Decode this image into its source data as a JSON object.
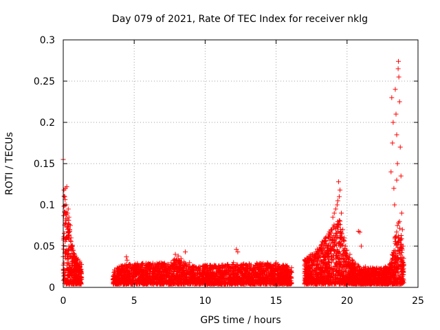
{
  "chart_data": {
    "type": "scatter",
    "title": "Day 079 of 2021, Rate Of TEC Index for receiver nklg",
    "xlabel": "GPS time / hours",
    "ylabel": "ROTI / TECUs",
    "xlim": [
      0,
      25
    ],
    "ylim": [
      0,
      0.3
    ],
    "x_ticks": [
      0,
      5,
      10,
      15,
      20,
      25
    ],
    "x_tick_labels": [
      "0",
      "5",
      "10",
      "15",
      "20",
      "25"
    ],
    "y_ticks": [
      0,
      0.05,
      0.1,
      0.15,
      0.2,
      0.25,
      0.3
    ],
    "y_tick_labels": [
      "0",
      "0.05",
      "0.1",
      "0.15",
      "0.2",
      "0.25",
      "0.3"
    ],
    "grid": true,
    "marker": "+",
    "marker_color": "#ff0000",
    "series": [
      {
        "name": "ROTI",
        "points": [
          [
            0.0,
            0.155
          ],
          [
            0.05,
            0.118
          ],
          [
            0.1,
            0.11
          ],
          [
            0.15,
            0.12
          ],
          [
            0.2,
            0.1
          ],
          [
            0.25,
            0.122
          ],
          [
            0.3,
            0.09
          ],
          [
            0.35,
            0.095
          ],
          [
            0.4,
            0.085
          ],
          [
            0.45,
            0.07
          ],
          [
            0.5,
            0.075
          ],
          [
            0.55,
            0.06
          ],
          [
            0.6,
            0.05
          ],
          [
            0.7,
            0.045
          ],
          [
            0.8,
            0.04
          ],
          [
            0.9,
            0.035
          ],
          [
            1.0,
            0.03
          ],
          [
            1.1,
            0.025
          ],
          [
            1.2,
            0.02
          ],
          [
            0.2,
            0.06
          ],
          [
            0.4,
            0.05
          ],
          [
            0.6,
            0.035
          ],
          [
            3.9,
            0.02
          ],
          [
            4.1,
            0.025
          ],
          [
            4.3,
            0.02
          ],
          [
            4.45,
            0.037
          ],
          [
            4.5,
            0.033
          ],
          [
            4.8,
            0.022
          ],
          [
            5.2,
            0.018
          ],
          [
            5.6,
            0.02
          ],
          [
            6.0,
            0.028
          ],
          [
            6.4,
            0.02
          ],
          [
            6.8,
            0.018
          ],
          [
            7.2,
            0.022
          ],
          [
            7.6,
            0.03
          ],
          [
            7.9,
            0.04
          ],
          [
            8.1,
            0.038
          ],
          [
            8.3,
            0.035
          ],
          [
            8.6,
            0.043
          ],
          [
            8.9,
            0.03
          ],
          [
            9.2,
            0.025
          ],
          [
            9.6,
            0.02
          ],
          [
            10.0,
            0.02
          ],
          [
            10.4,
            0.018
          ],
          [
            10.8,
            0.022
          ],
          [
            11.2,
            0.02
          ],
          [
            11.6,
            0.028
          ],
          [
            12.0,
            0.03
          ],
          [
            12.2,
            0.046
          ],
          [
            12.3,
            0.043
          ],
          [
            12.6,
            0.025
          ],
          [
            13.0,
            0.022
          ],
          [
            13.4,
            0.025
          ],
          [
            13.8,
            0.022
          ],
          [
            14.2,
            0.028
          ],
          [
            14.6,
            0.025
          ],
          [
            15.0,
            0.03
          ],
          [
            15.4,
            0.025
          ],
          [
            15.8,
            0.022
          ],
          [
            16.1,
            0.018
          ],
          [
            17.1,
            0.025
          ],
          [
            17.3,
            0.035
          ],
          [
            17.6,
            0.03
          ],
          [
            17.9,
            0.04
          ],
          [
            18.1,
            0.045
          ],
          [
            18.3,
            0.055
          ],
          [
            18.5,
            0.06
          ],
          [
            18.7,
            0.065
          ],
          [
            18.9,
            0.07
          ],
          [
            19.0,
            0.085
          ],
          [
            19.1,
            0.09
          ],
          [
            19.2,
            0.095
          ],
          [
            19.3,
            0.1
          ],
          [
            19.35,
            0.105
          ],
          [
            19.4,
            0.128
          ],
          [
            19.45,
            0.11
          ],
          [
            19.5,
            0.118
          ],
          [
            19.6,
            0.09
          ],
          [
            19.7,
            0.07
          ],
          [
            19.8,
            0.06
          ],
          [
            19.9,
            0.05
          ],
          [
            20.0,
            0.045
          ],
          [
            20.2,
            0.04
          ],
          [
            20.4,
            0.03
          ],
          [
            20.8,
            0.068
          ],
          [
            20.9,
            0.067
          ],
          [
            21.0,
            0.05
          ],
          [
            21.3,
            0.025
          ],
          [
            21.8,
            0.02
          ],
          [
            22.3,
            0.022
          ],
          [
            22.7,
            0.025
          ],
          [
            23.0,
            0.028
          ],
          [
            23.1,
            0.14
          ],
          [
            23.15,
            0.23
          ],
          [
            23.2,
            0.175
          ],
          [
            23.25,
            0.2
          ],
          [
            23.3,
            0.12
          ],
          [
            23.35,
            0.1
          ],
          [
            23.4,
            0.24
          ],
          [
            23.45,
            0.21
          ],
          [
            23.5,
            0.185
          ],
          [
            23.55,
            0.15
          ],
          [
            23.6,
            0.265
          ],
          [
            23.62,
            0.274
          ],
          [
            23.65,
            0.255
          ],
          [
            23.7,
            0.225
          ],
          [
            23.75,
            0.17
          ],
          [
            23.8,
            0.135
          ],
          [
            23.85,
            0.09
          ],
          [
            23.9,
            0.07
          ],
          [
            23.95,
            0.05
          ],
          [
            23.6,
            0.06
          ],
          [
            23.7,
            0.045
          ],
          [
            23.8,
            0.035
          ],
          [
            23.5,
            0.13
          ],
          [
            23.55,
            0.075
          ]
        ]
      }
    ],
    "dense_bands": [
      {
        "x_range": [
          0.0,
          1.3
        ],
        "y_floor": 0.0,
        "y_ceiling": [
          [
            0.0,
            0.11
          ],
          [
            0.3,
            0.1
          ],
          [
            0.5,
            0.06
          ],
          [
            0.8,
            0.035
          ],
          [
            1.3,
            0.025
          ]
        ],
        "count": 380
      },
      {
        "x_range": [
          3.5,
          16.1
        ],
        "y_floor": 0.0,
        "y_ceiling": [
          [
            3.5,
            0.018
          ],
          [
            4.5,
            0.025
          ],
          [
            7.5,
            0.026
          ],
          [
            8.0,
            0.032
          ],
          [
            9.0,
            0.022
          ],
          [
            12.0,
            0.024
          ],
          [
            14.5,
            0.026
          ],
          [
            16.1,
            0.022
          ]
        ],
        "count": 2600
      },
      {
        "x_range": [
          17.0,
          24.0
        ],
        "y_floor": 0.0,
        "y_ceiling": [
          [
            17.0,
            0.03
          ],
          [
            18.0,
            0.045
          ],
          [
            19.0,
            0.07
          ],
          [
            19.5,
            0.08
          ],
          [
            20.0,
            0.035
          ],
          [
            21.0,
            0.02
          ],
          [
            23.0,
            0.02
          ],
          [
            23.4,
            0.06
          ],
          [
            23.7,
            0.08
          ],
          [
            24.0,
            0.03
          ]
        ],
        "count": 1900
      }
    ]
  }
}
